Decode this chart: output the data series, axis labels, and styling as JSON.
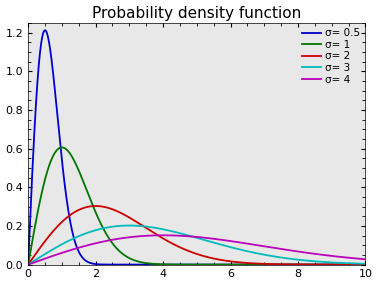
{
  "title": "Probability density function",
  "xlim": [
    0,
    10
  ],
  "ylim": [
    0,
    1.25
  ],
  "yticks": [
    0,
    0.2,
    0.4,
    0.6,
    0.8,
    1.0,
    1.2
  ],
  "xticks": [
    0,
    2,
    4,
    6,
    8,
    10
  ],
  "sigmas": [
    0.5,
    1,
    2,
    3,
    4
  ],
  "colors": [
    "#0000cc",
    "#007700",
    "#cc0000",
    "#00bbbb",
    "#bb00bb"
  ],
  "labels": [
    "σ= 0.5",
    "σ= 1",
    "σ= 2",
    "σ= 3",
    "σ= 4"
  ],
  "bg_color": "#e8e8e8",
  "fig_color": "#ffffff",
  "title_fontsize": 11,
  "legend_fontsize": 7.5,
  "tick_fontsize": 8,
  "linewidth": 1.3,
  "figwidth": 3.78,
  "figheight": 2.85,
  "dpi": 100
}
